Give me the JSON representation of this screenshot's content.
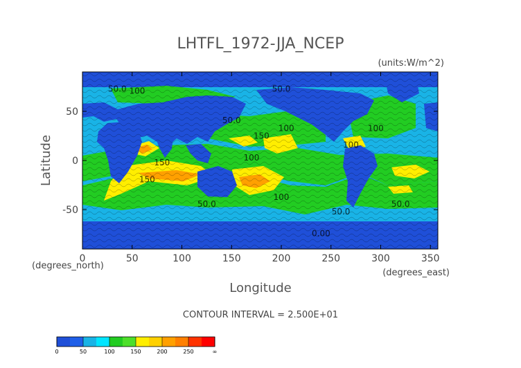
{
  "chart_data": {
    "type": "heatmap",
    "title": "LHTFL_1972-JJA_NCEP",
    "units": "(units:W/m^2)",
    "xlabel": "Longitude",
    "ylabel": "Latitude",
    "x_unit_label": "(degrees_east)",
    "y_unit_label": "(degrees_north)",
    "xlim": [
      0,
      357.5
    ],
    "ylim": [
      -90,
      90
    ],
    "x_ticks": [
      0,
      50,
      100,
      150,
      200,
      250,
      300,
      350
    ],
    "y_ticks": [
      -50,
      0,
      50
    ],
    "contour_interval_text": "CONTOUR INTERVAL = 2.500E+01",
    "contour_labels": [
      {
        "text": "50.0",
        "lon": 35,
        "lat": 70
      },
      {
        "text": "100",
        "lon": 55,
        "lat": 68
      },
      {
        "text": "50.0",
        "lon": 200,
        "lat": 70
      },
      {
        "text": "50.0",
        "lon": 150,
        "lat": 38
      },
      {
        "text": "100",
        "lon": 205,
        "lat": 30
      },
      {
        "text": "150",
        "lon": 180,
        "lat": 22
      },
      {
        "text": "100",
        "lon": 295,
        "lat": 30
      },
      {
        "text": "100",
        "lon": 270,
        "lat": 13
      },
      {
        "text": "100",
        "lon": 170,
        "lat": 0
      },
      {
        "text": "150",
        "lon": 80,
        "lat": -5
      },
      {
        "text": "150",
        "lon": 65,
        "lat": -22
      },
      {
        "text": "100",
        "lon": 200,
        "lat": -40
      },
      {
        "text": "50.0",
        "lon": 125,
        "lat": -47
      },
      {
        "text": "50.0",
        "lon": 260,
        "lat": -55
      },
      {
        "text": "50.0",
        "lon": 320,
        "lat": -47
      },
      {
        "text": "0.00",
        "lon": 240,
        "lat": -77
      }
    ],
    "colorbar": {
      "levels": [
        0,
        25,
        50,
        75,
        100,
        125,
        150,
        175,
        200,
        225,
        250,
        275,
        300
      ],
      "tick_labels": [
        "0",
        "50",
        "100",
        "150",
        "200",
        "250",
        "∞"
      ],
      "colors": [
        "#1f4fd8",
        "#1f5fe8",
        "#19b3e6",
        "#00e5ff",
        "#22cc22",
        "#4ddf2a",
        "#ffee00",
        "#ffd000",
        "#ffa000",
        "#ff7f00",
        "#ff3300",
        "#ff0000"
      ]
    }
  }
}
